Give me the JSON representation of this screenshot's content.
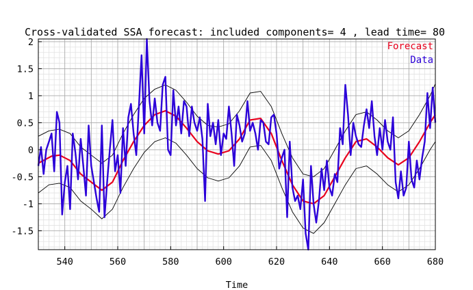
{
  "chart_data": {
    "type": "line",
    "title": "Cross-validated SSA forecast: included components= 4 , lead time= 80",
    "xlabel": "Time",
    "ylabel": "",
    "xlim": [
      530,
      680
    ],
    "ylim": [
      -1.85,
      2.05
    ],
    "x_ticks": [
      540,
      560,
      580,
      600,
      620,
      640,
      660,
      680
    ],
    "y_ticks": [
      -1.5,
      -1,
      -0.5,
      0,
      0.5,
      1,
      1.5,
      2
    ],
    "x_tick_labels": [
      "540",
      "560",
      "580",
      "600",
      "620",
      "640",
      "660",
      "680"
    ],
    "y_tick_labels": [
      "-1.5",
      "-1",
      "-0.5",
      "0",
      "0.5",
      "1",
      "1.5",
      "2"
    ],
    "grid": "major and minor",
    "legend_position": "top-right",
    "series": [
      {
        "name": "Forecast",
        "color": "#e8001c",
        "x": [
          530,
          535,
          538,
          542,
          546,
          550,
          554,
          558,
          562,
          566,
          570,
          574,
          578,
          582,
          586,
          590,
          594,
          598,
          602,
          606,
          610,
          614,
          618,
          622,
          626,
          630,
          634,
          638,
          642,
          646,
          650,
          654,
          658,
          662,
          666,
          670,
          674,
          678,
          680
        ],
        "values": [
          -0.25,
          -0.12,
          -0.1,
          -0.2,
          -0.45,
          -0.6,
          -0.75,
          -0.6,
          -0.2,
          0.15,
          0.45,
          0.65,
          0.72,
          0.62,
          0.4,
          0.15,
          -0.02,
          -0.08,
          -0.02,
          0.2,
          0.55,
          0.58,
          0.3,
          -0.2,
          -0.65,
          -0.95,
          -1.0,
          -0.85,
          -0.5,
          -0.15,
          0.15,
          0.2,
          0.05,
          -0.15,
          -0.28,
          -0.15,
          0.15,
          0.5,
          0.65
        ]
      },
      {
        "name": "Data",
        "color": "#2b00d8",
        "x": [
          530,
          531,
          532,
          533,
          534,
          535,
          536,
          537,
          538,
          539,
          540,
          541,
          542,
          543,
          544,
          545,
          546,
          547,
          548,
          549,
          550,
          551,
          552,
          553,
          554,
          555,
          556,
          557,
          558,
          559,
          560,
          561,
          562,
          563,
          564,
          565,
          566,
          567,
          568,
          569,
          570,
          571,
          572,
          573,
          574,
          575,
          576,
          577,
          578,
          579,
          580,
          581,
          582,
          583,
          584,
          585,
          586,
          587,
          588,
          589,
          590,
          591,
          592,
          593,
          594,
          595,
          596,
          597,
          598,
          599,
          600,
          601,
          602,
          603,
          604,
          605,
          606,
          607,
          608,
          609,
          610,
          611,
          612,
          613,
          614,
          615,
          616,
          617,
          618,
          619,
          620,
          621,
          622,
          623,
          624,
          625,
          626,
          627,
          628,
          629,
          630,
          631,
          632,
          633,
          634,
          635,
          636,
          637,
          638,
          639,
          640,
          641,
          642,
          643,
          644,
          645,
          646,
          647,
          648,
          649,
          650,
          651,
          652,
          653,
          654,
          655,
          656,
          657,
          658,
          659,
          660,
          661,
          662,
          663,
          664,
          665,
          666,
          667,
          668,
          669,
          670,
          671,
          672,
          673,
          674,
          675,
          676,
          677,
          678,
          679,
          680
        ],
        "values": [
          -0.3,
          0.05,
          -0.45,
          0.0,
          0.15,
          0.3,
          -0.4,
          0.7,
          0.5,
          -1.2,
          -0.6,
          -0.3,
          -1.1,
          0.3,
          -0.05,
          -0.55,
          0.2,
          -0.3,
          -0.85,
          0.45,
          -0.3,
          -0.6,
          -0.9,
          -1.15,
          0.45,
          -1.25,
          -0.6,
          0.0,
          0.55,
          -0.4,
          -0.1,
          -0.8,
          0.4,
          -0.3,
          0.6,
          0.85,
          0.3,
          -0.1,
          0.8,
          1.75,
          0.3,
          2.05,
          0.9,
          0.45,
          0.95,
          0.5,
          0.35,
          1.2,
          1.35,
          0.0,
          -0.1,
          1.1,
          0.45,
          0.8,
          0.3,
          0.9,
          0.8,
          0.25,
          0.8,
          0.5,
          0.35,
          0.6,
          0.2,
          -0.95,
          0.85,
          0.25,
          0.5,
          0.1,
          0.55,
          -0.1,
          0.3,
          0.2,
          0.8,
          0.3,
          -0.3,
          0.65,
          0.45,
          0.15,
          0.3,
          0.9,
          0.35,
          0.5,
          0.3,
          0.0,
          0.55,
          0.5,
          0.15,
          0.1,
          0.6,
          0.65,
          0.3,
          -0.35,
          -0.15,
          0.0,
          -1.25,
          0.15,
          -0.7,
          -0.95,
          -0.85,
          -1.1,
          -0.55,
          -1.55,
          -1.85,
          -0.3,
          -1.0,
          -1.35,
          -0.95,
          -0.35,
          -0.75,
          -0.2,
          -0.7,
          -0.85,
          -0.45,
          -0.6,
          0.4,
          0.1,
          1.2,
          0.65,
          -0.1,
          0.5,
          0.25,
          0.1,
          0.05,
          0.45,
          0.75,
          0.4,
          0.9,
          0.25,
          -0.1,
          0.4,
          0.0,
          0.55,
          0.15,
          0.0,
          0.6,
          -0.6,
          -0.9,
          -0.4,
          -0.85,
          -0.7,
          0.15,
          -0.55,
          -0.7,
          -0.2,
          -0.55,
          -0.15,
          0.15,
          1.05,
          0.4,
          1.15,
          0.5
        ]
      },
      {
        "name": "",
        "color": "#000000",
        "x": [
          530,
          534,
          538,
          542,
          546,
          550,
          554,
          558,
          562,
          566,
          570,
          574,
          578,
          582,
          586,
          590,
          594,
          598,
          602,
          606,
          610,
          614,
          618,
          622,
          626,
          630,
          634,
          638,
          642,
          646,
          650,
          654,
          658,
          662,
          666,
          670,
          674,
          678,
          680
        ],
        "values": [
          0.25,
          0.35,
          0.38,
          0.3,
          0.05,
          -0.1,
          -0.25,
          -0.1,
          0.3,
          0.65,
          0.95,
          1.12,
          1.2,
          1.1,
          0.88,
          0.62,
          0.45,
          0.42,
          0.48,
          0.72,
          1.05,
          1.08,
          0.8,
          0.3,
          -0.15,
          -0.45,
          -0.5,
          -0.35,
          0.0,
          0.35,
          0.65,
          0.7,
          0.55,
          0.35,
          0.22,
          0.35,
          0.65,
          1.0,
          1.22
        ]
      },
      {
        "name": "",
        "color": "#000000",
        "x": [
          530,
          534,
          538,
          542,
          546,
          550,
          554,
          558,
          562,
          566,
          570,
          574,
          578,
          582,
          586,
          590,
          594,
          598,
          602,
          606,
          610,
          614,
          618,
          622,
          626,
          630,
          634,
          638,
          642,
          646,
          650,
          654,
          658,
          662,
          666,
          670,
          674,
          678,
          680
        ],
        "values": [
          -0.8,
          -0.65,
          -0.62,
          -0.7,
          -0.95,
          -1.1,
          -1.28,
          -1.1,
          -0.7,
          -0.35,
          -0.05,
          0.15,
          0.22,
          0.12,
          -0.1,
          -0.35,
          -0.52,
          -0.58,
          -0.52,
          -0.3,
          0.05,
          0.08,
          -0.2,
          -0.7,
          -1.15,
          -1.45,
          -1.55,
          -1.35,
          -1.0,
          -0.65,
          -0.35,
          -0.3,
          -0.45,
          -0.65,
          -0.78,
          -0.65,
          -0.35,
          0.0,
          0.15
        ]
      }
    ]
  }
}
